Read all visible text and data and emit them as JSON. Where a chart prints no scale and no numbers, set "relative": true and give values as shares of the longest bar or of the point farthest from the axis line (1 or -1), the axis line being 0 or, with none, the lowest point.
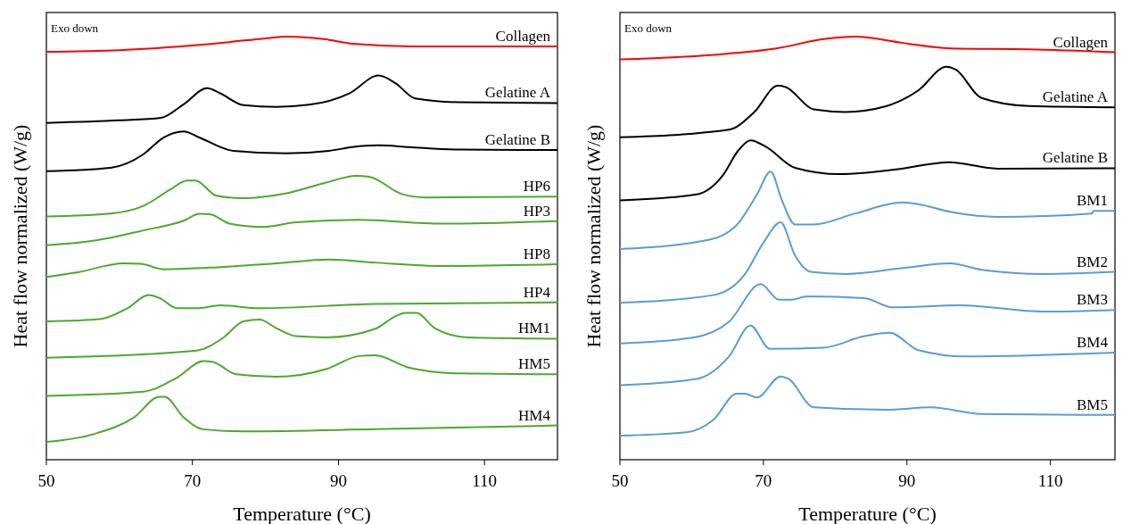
{
  "chart_data": [
    {
      "type": "line",
      "relative": true,
      "xlabel": "Temperature (°C)",
      "ylabel": "Heat flow normalized (W/g)",
      "annotations": [
        "Exo down"
      ],
      "xlim": [
        50,
        120
      ],
      "xticks": [
        50,
        70,
        90,
        110
      ],
      "series": [
        {
          "name": "Collagen",
          "color": "#ff0000",
          "x": [
            50,
            60,
            70,
            75,
            80,
            83,
            88,
            92,
            100,
            110,
            120
          ],
          "values": [
            0.964,
            0.968,
            0.979,
            0.987,
            0.996,
            1,
            0.994,
            0.983,
            0.977,
            0.977,
            0.977
          ]
        },
        {
          "name": "Gelatine A",
          "color": "#000000",
          "x": [
            50,
            60,
            65.7,
            68.8,
            72,
            73.8,
            77,
            81.5,
            86,
            91.5,
            95.5,
            97.8,
            100.5,
            106.4,
            120
          ],
          "values": [
            0.796,
            0.802,
            0.808,
            0.84,
            0.878,
            0.866,
            0.838,
            0.834,
            0.839,
            0.866,
            0.908,
            0.89,
            0.854,
            0.845,
            0.843
          ]
        },
        {
          "name": "Gelatine B",
          "color": "#000000",
          "x": [
            50,
            58.8,
            63.3,
            66,
            68.8,
            71,
            75.6,
            82.8,
            88.7,
            91.9,
            95.5,
            99.6,
            106.4,
            120
          ],
          "values": [
            0.682,
            0.69,
            0.722,
            0.761,
            0.776,
            0.761,
            0.73,
            0.724,
            0.73,
            0.739,
            0.743,
            0.739,
            0.733,
            0.732
          ]
        },
        {
          "name": "HP6",
          "color": "#4ea72e",
          "x": [
            50,
            58.8,
            63.3,
            67,
            69.3,
            70.4,
            73.3,
            77,
            82.4,
            88.3,
            92.4,
            94.2,
            98.7,
            101.9,
            120
          ],
          "values": [
            0.575,
            0.582,
            0.6,
            0.639,
            0.66,
            0.66,
            0.624,
            0.618,
            0.628,
            0.655,
            0.671,
            0.669,
            0.628,
            0.62,
            0.622
          ]
        },
        {
          "name": "HP3",
          "color": "#4ea72e",
          "x": [
            50,
            57,
            63.3,
            68.8,
            71,
            72.4,
            75.1,
            79.7,
            84.2,
            92.8,
            104.2,
            120
          ],
          "values": [
            0.507,
            0.519,
            0.542,
            0.565,
            0.581,
            0.58,
            0.558,
            0.55,
            0.561,
            0.567,
            0.558,
            0.564
          ]
        },
        {
          "name": "HP8",
          "color": "#4ea72e",
          "x": [
            50,
            54.3,
            60.6,
            62.9,
            66.1,
            72.4,
            81.5,
            88.7,
            95,
            104.2,
            120
          ],
          "values": [
            0.432,
            0.443,
            0.464,
            0.463,
            0.45,
            0.454,
            0.464,
            0.473,
            0.466,
            0.458,
            0.462
          ]
        },
        {
          "name": "HP4",
          "color": "#4ea72e",
          "x": [
            50,
            57.5,
            61.1,
            64,
            65.5,
            67.9,
            70.6,
            73.8,
            79.2,
            95,
            120
          ],
          "values": [
            0.327,
            0.333,
            0.358,
            0.389,
            0.382,
            0.358,
            0.358,
            0.365,
            0.358,
            0.368,
            0.372
          ]
        },
        {
          "name": "HM1",
          "color": "#4ea72e",
          "x": [
            50,
            70.6,
            74.2,
            77,
            79.2,
            81.5,
            84.2,
            88.3,
            95,
            97.8,
            99.2,
            100.7,
            103.2,
            107.7,
            120
          ],
          "values": [
            0.241,
            0.258,
            0.288,
            0.327,
            0.331,
            0.311,
            0.292,
            0.289,
            0.309,
            0.339,
            0.347,
            0.347,
            0.311,
            0.289,
            0.286
          ]
        },
        {
          "name": "HM5",
          "color": "#4ea72e",
          "x": [
            50,
            63.3,
            67.9,
            71.5,
            72.8,
            76,
            81.5,
            88.3,
            92.8,
            95,
            99.6,
            106.4,
            120
          ],
          "values": [
            0.151,
            0.161,
            0.194,
            0.233,
            0.231,
            0.202,
            0.196,
            0.214,
            0.245,
            0.247,
            0.218,
            0.204,
            0.202
          ]
        },
        {
          "name": "HM4",
          "color": "#4ea72e",
          "x": [
            50,
            56.6,
            62,
            65.5,
            66.2,
            68.8,
            71.5,
            77,
            95,
            120
          ],
          "values": [
            0.042,
            0.061,
            0.1,
            0.149,
            0.149,
            0.1,
            0.072,
            0.067,
            0.072,
            0.081
          ]
        }
      ]
    },
    {
      "type": "line",
      "relative": true,
      "xlabel": "Temperature (°C)",
      "ylabel": "Heat flow normalized (W/g)",
      "annotations": [
        "Exo down"
      ],
      "xlim": [
        50,
        119
      ],
      "xticks": [
        50,
        70,
        90,
        110
      ],
      "series": [
        {
          "name": "Collagen",
          "color": "#ff0000",
          "x": [
            50,
            63,
            71.8,
            78.4,
            82.8,
            89.4,
            96,
            107,
            119
          ],
          "values": [
            0.946,
            0.957,
            0.972,
            0.994,
            1,
            0.985,
            0.972,
            0.97,
            0.963
          ]
        },
        {
          "name": "Gelatine A",
          "color": "#000000",
          "x": [
            50,
            65.2,
            68.7,
            72,
            73.1,
            77,
            81.4,
            87.2,
            91.6,
            95.5,
            96.8,
            100.4,
            107,
            119
          ],
          "values": [
            0.762,
            0.78,
            0.821,
            0.884,
            0.881,
            0.828,
            0.822,
            0.836,
            0.873,
            0.929,
            0.922,
            0.855,
            0.836,
            0.833
          ]
        },
        {
          "name": "Gelatine B",
          "color": "#000000",
          "x": [
            50,
            60.7,
            64.3,
            66.5,
            68.2,
            70.4,
            74.4,
            80.6,
            88.5,
            93.8,
            95.9,
            102.6,
            119
          ],
          "values": [
            0.613,
            0.627,
            0.671,
            0.731,
            0.755,
            0.739,
            0.69,
            0.675,
            0.686,
            0.7,
            0.703,
            0.688,
            0.689
          ]
        },
        {
          "name": "BM1",
          "color": "#5b9bd5",
          "x": [
            50,
            62.5,
            66.5,
            69.1,
            71,
            72.6,
            74.4,
            77,
            82.8,
            89.4,
            91.6,
            96,
            102.6,
            115.8,
            116,
            119
          ],
          "values": [
            0.498,
            0.52,
            0.559,
            0.627,
            0.681,
            0.612,
            0.556,
            0.556,
            0.582,
            0.608,
            0.604,
            0.586,
            0.574,
            0.582,
            0.588,
            0.588
          ]
        },
        {
          "name": "BM2",
          "color": "#5b9bd5",
          "x": [
            50,
            63,
            67.4,
            70,
            72.4,
            74.4,
            76.6,
            81.5,
            89.4,
            96,
            100.4,
            109.2,
            119
          ],
          "values": [
            0.371,
            0.389,
            0.438,
            0.513,
            0.561,
            0.483,
            0.444,
            0.439,
            0.453,
            0.464,
            0.449,
            0.439,
            0.444
          ]
        },
        {
          "name": "BM3",
          "color": "#5b9bd5",
          "x": [
            50,
            60.3,
            65.2,
            69.6,
            72.2,
            73.7,
            76.2,
            84.1,
            88,
            97.3,
            109.2,
            119
          ],
          "values": [
            0.275,
            0.289,
            0.326,
            0.415,
            0.378,
            0.378,
            0.386,
            0.382,
            0.36,
            0.365,
            0.35,
            0.354
          ]
        },
        {
          "name": "BM4",
          "color": "#5b9bd5",
          "x": [
            50,
            60.7,
            65.2,
            68.2,
            70.9,
            78.4,
            84.1,
            87.6,
            91.6,
            98.2,
            119
          ],
          "values": [
            0.176,
            0.191,
            0.244,
            0.317,
            0.262,
            0.265,
            0.292,
            0.3,
            0.259,
            0.244,
            0.253
          ]
        },
        {
          "name": "BM5",
          "color": "#5b9bd5",
          "x": [
            50,
            59.3,
            63,
            66.3,
            67.4,
            69.1,
            72.4,
            73.5,
            77,
            87.2,
            93.3,
            100.4,
            119
          ],
          "values": [
            0.057,
            0.065,
            0.094,
            0.156,
            0.156,
            0.147,
            0.197,
            0.191,
            0.124,
            0.118,
            0.124,
            0.108,
            0.106
          ]
        }
      ]
    }
  ]
}
